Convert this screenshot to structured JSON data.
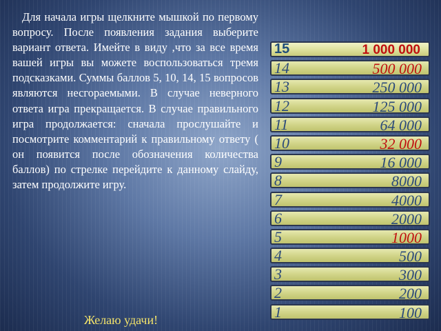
{
  "instructions": "Для начала игры щелкните мышкой по первому вопросу. После появления задания выберите вариант ответа. Имейте в виду ,что за все время вашей игры вы можете воспользоваться тремя подсказками. Суммы баллов 5, 10, 14, 15 вопросов являются несгораемыми. В случае неверного ответа игра прекращается. В случае правильного игра продолжается: сначала прослушайте и посмотрите комментарий к правильному ответу ( он появится после обозначения количества баллов) по стрелке перейдите к данному слайду, затем продолжите игру.",
  "wish": "Желаю удачи!",
  "ladder": [
    {
      "num": "15",
      "amount": "1 000 000"
    },
    {
      "num": "14",
      "amount": "500 000"
    },
    {
      "num": "13",
      "amount": "250 000"
    },
    {
      "num": "12",
      "amount": "125 000"
    },
    {
      "num": "11",
      "amount": "64 000"
    },
    {
      "num": "10",
      "amount": "32 000"
    },
    {
      "num": "9",
      "amount": "16 000"
    },
    {
      "num": "8",
      "amount": "8000"
    },
    {
      "num": "7",
      "amount": "4000"
    },
    {
      "num": "6",
      "amount": "2000"
    },
    {
      "num": "5",
      "amount": "1000"
    },
    {
      "num": "4",
      "amount": "500"
    },
    {
      "num": "3",
      "amount": "300"
    },
    {
      "num": "2",
      "amount": "200"
    },
    {
      "num": "1",
      "amount": "100"
    }
  ],
  "colors": {
    "amount_default": "#2b4a7a",
    "amount_highlight": "#c01010",
    "wish_text": "#f3e36a"
  }
}
